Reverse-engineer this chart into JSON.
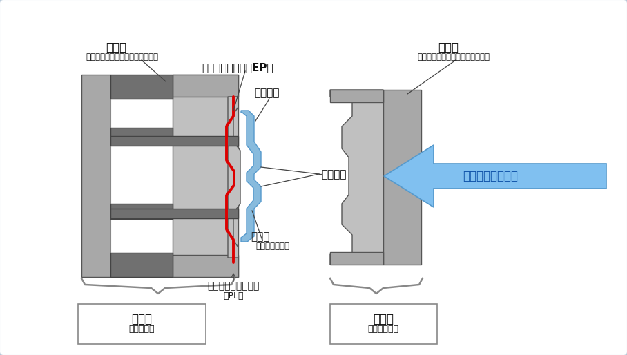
{
  "bg_color": "#eef2f7",
  "border_color": "#b8c8d8",
  "gray_dark": "#707070",
  "gray_mid": "#909090",
  "gray_light": "#c0c0c0",
  "gray_fill": "#a8a8a8",
  "gray_lighter": "#d0d0d0",
  "white": "#ffffff",
  "red": "#dd0000",
  "blue_light": "#88bbdd",
  "blue_arrow_fill": "#80c0f0",
  "blue_arrow_stroke": "#5599cc",
  "text_color": "#111111",
  "ann_line_color": "#444444",
  "border_box_color": "#999999",
  "brace_color": "#888888",
  "labels": {
    "kadouban": "可動盤",
    "kadouban_sub": "（金型の可動側を取り付ける板）",
    "kotei_ban": "固定盤",
    "kotei_ban_sub": "（金型の固定側を取り付ける板）",
    "ejector_pin": "エジェクタピン（EP）",
    "nukigobai": "抜き勾配",
    "gate_ato": "ゲート跡",
    "seikeihin": "成形品",
    "seikeihin_sub": "（キャビティ）",
    "parting_line": "パーティングライン",
    "parting_line_sub": "（PL）",
    "kadou_side": "可動側",
    "kadou_side_sub": "（コア側）",
    "seikei_side": "成形側",
    "seikei_side_sub": "（キャビ側）",
    "plastic_jushi": "プラスチック樹脂"
  }
}
